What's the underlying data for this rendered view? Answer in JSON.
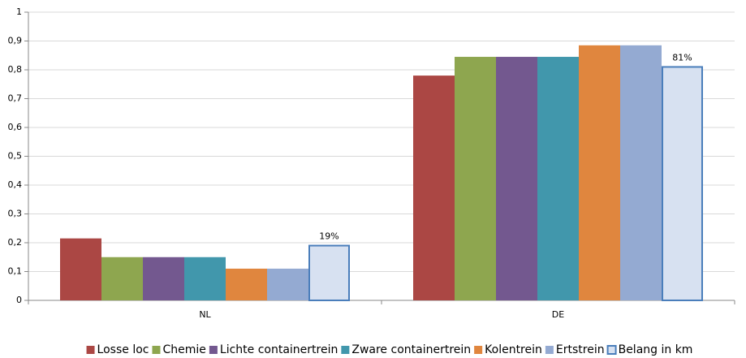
{
  "chart_data": {
    "type": "bar",
    "categories": [
      "NL",
      "DE"
    ],
    "series": [
      {
        "name": "Losse loc",
        "color": "#ab4744",
        "values": [
          0.215,
          0.78
        ]
      },
      {
        "name": "Chemie",
        "color": "#8ea64f",
        "values": [
          0.15,
          0.845
        ]
      },
      {
        "name": "Lichte containertrein",
        "color": "#73588f",
        "values": [
          0.15,
          0.845
        ]
      },
      {
        "name": "Zware containertrein",
        "color": "#4197ac",
        "values": [
          0.15,
          0.845
        ]
      },
      {
        "name": "Kolentrein",
        "color": "#e0863e",
        "values": [
          0.11,
          0.885
        ]
      },
      {
        "name": "Ertstrein",
        "color": "#94aad2",
        "values": [
          0.11,
          0.885
        ]
      },
      {
        "name": "Belang in km",
        "color": "#d7e1f1",
        "edgecolor": "#4a7ebb",
        "values": [
          0.19,
          0.81
        ],
        "value_labels": [
          "19%",
          "81%"
        ]
      }
    ],
    "ylim": [
      0,
      1
    ],
    "yticks": [
      0,
      {
        "value": 0.1,
        "label": "0,1"
      },
      {
        "value": 0.2,
        "label": "0,2"
      },
      {
        "value": 0.3,
        "label": "0,3"
      },
      {
        "value": 0.4,
        "label": "0,4"
      },
      {
        "value": 0.5,
        "label": "0,5"
      },
      {
        "value": 0.6,
        "label": "0,6"
      },
      {
        "value": 0.7,
        "label": "0,7"
      },
      {
        "value": 0.8,
        "label": "0,8"
      },
      {
        "value": 0.9,
        "label": "0,9"
      },
      1
    ],
    "grid": true,
    "legend": "bottom"
  }
}
